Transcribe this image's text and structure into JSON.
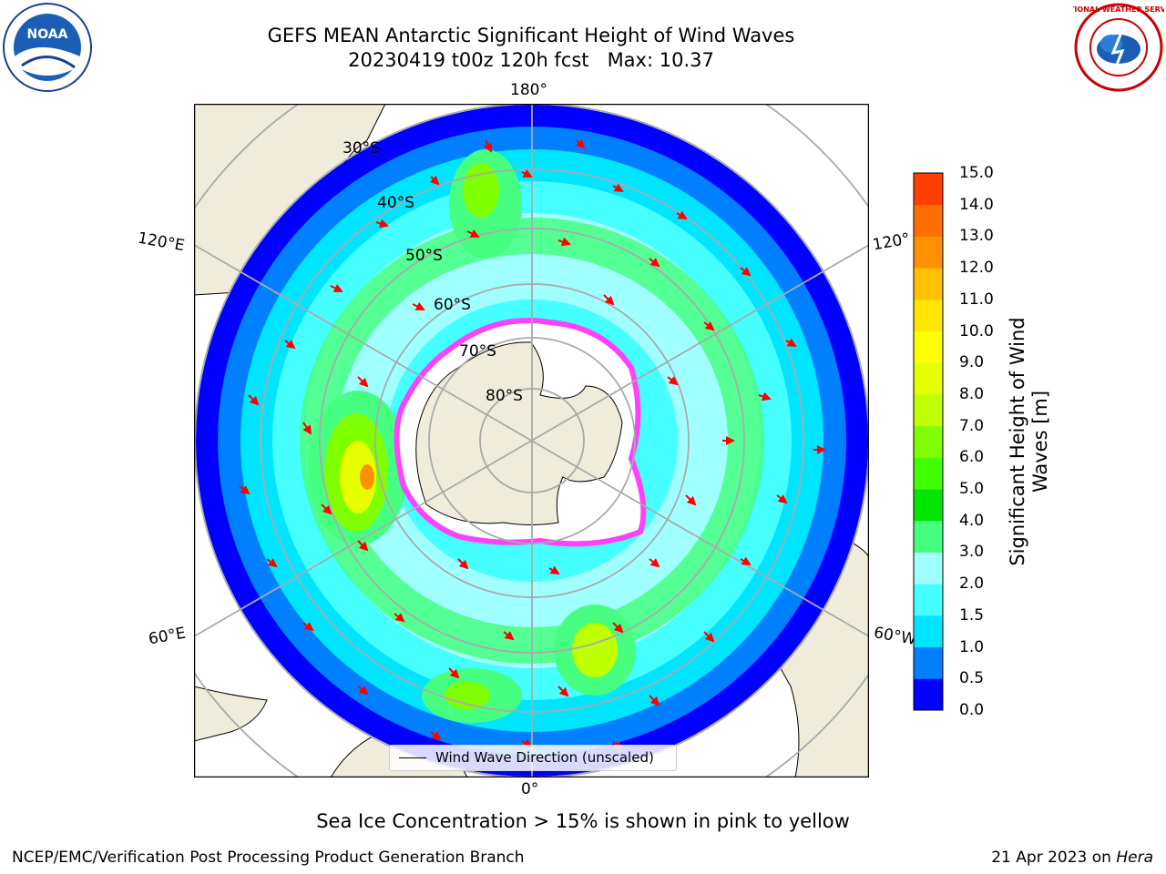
{
  "title": {
    "line1": "GEFS MEAN Antarctic Significant Height of Wind Waves",
    "line2": "20230419 t00z 120h fcst   Max: 10.37"
  },
  "map": {
    "projection": "south-polar-stereographic",
    "longitude_labels": {
      "top": "180°",
      "bottom": "0°",
      "upper_left": "120°E",
      "upper_right": "120°",
      "lower_left": "60°E",
      "lower_right": "60°W"
    },
    "latitude_labels": [
      "30°S",
      "40°S",
      "50°S",
      "60°S",
      "70°S",
      "80°S"
    ],
    "land_color": "#efecdc",
    "arrow_color": "#ff0000"
  },
  "colorbar": {
    "ticks": [
      "15.0",
      "14.0",
      "13.0",
      "12.0",
      "11.0",
      "10.0",
      "9.0",
      "8.0",
      "7.0",
      "6.0",
      "5.0",
      "4.0",
      "3.0",
      "2.0",
      "1.5",
      "1.0",
      "0.5",
      "0.0"
    ],
    "colors": [
      "#0000ff",
      "#0080ff",
      "#00e5ff",
      "#46ffff",
      "#a0ffff",
      "#46ff80",
      "#00e600",
      "#40ff00",
      "#80ff00",
      "#c0ff00",
      "#e6ff00",
      "#ffff00",
      "#ffe600",
      "#ffc000",
      "#ff9000",
      "#ff7000",
      "#ff4000",
      "#ff1000"
    ],
    "label_line1": "Significant Height of Wind",
    "label_line2": "Waves [m]"
  },
  "legend": {
    "label": "Wind Wave Direction (unscaled)"
  },
  "footnote": "Sea Ice Concentration > 15% is shown in pink to yellow",
  "credit_left": "NCEP/EMC/Verification Post Processing Product Generation Branch",
  "credit_right_date": "21 Apr 2023 on ",
  "credit_right_machine": "Hera",
  "logos": {
    "left": "NOAA",
    "right": "NATIONAL WEATHER SERVICE"
  }
}
